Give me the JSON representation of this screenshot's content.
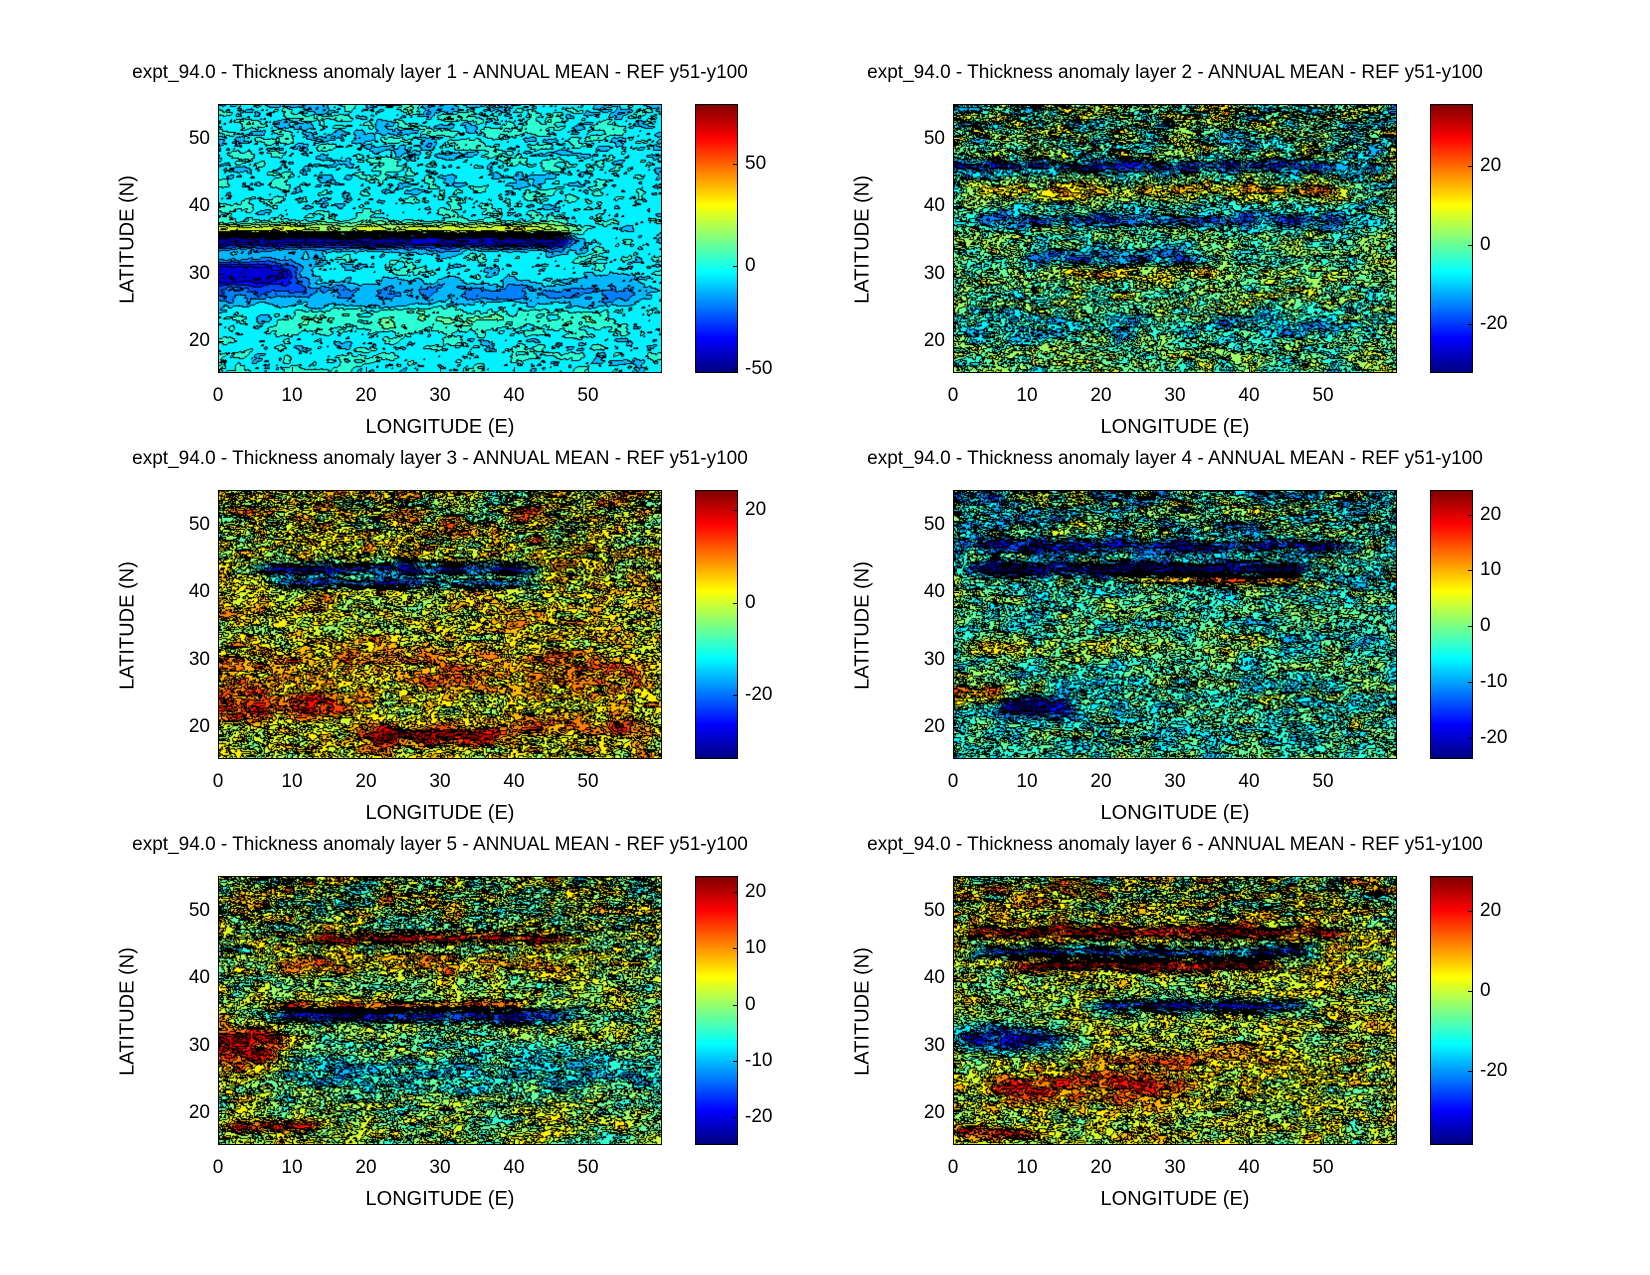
{
  "chart_data": [
    {
      "type": "heatmap",
      "title": "expt_94.0 - Thickness anomaly layer 1 - ANNUAL MEAN - REF y51-y100",
      "xlabel": "LONGITUDE (E)",
      "ylabel": "LATITUDE (N)",
      "xlim": [
        0,
        60
      ],
      "ylim": [
        15.3,
        55.2
      ],
      "xticks": [
        "0",
        "10",
        "20",
        "30",
        "40",
        "50"
      ],
      "yticks": [
        "20",
        "30",
        "40",
        "50"
      ],
      "colorbar": {
        "range": [
          -52,
          79
        ],
        "ticks": [
          "-50",
          "0",
          "50"
        ],
        "colormap": "jet"
      },
      "field": {
        "base": -4,
        "noise": 5,
        "features": [
          {
            "lon": [
              0,
              45
            ],
            "lat": 35,
            "amp": -45,
            "w": 1.2
          },
          {
            "lon": [
              0,
              45
            ],
            "lat": 36.5,
            "amp": 35,
            "w": 1
          },
          {
            "lon": [
              0,
              8
            ],
            "lat": 30,
            "amp": -40,
            "w": 2
          },
          {
            "lon": [
              0,
              55
            ],
            "lat": 27,
            "amp": -12,
            "w": 2
          },
          {
            "lon": [
              10,
              50
            ],
            "lat": 23,
            "amp": 8,
            "w": 2
          }
        ]
      }
    },
    {
      "type": "heatmap",
      "title": "expt_94.0 - Thickness anomaly layer 2 - ANNUAL MEAN - REF y51-y100",
      "xlabel": "LONGITUDE (E)",
      "ylabel": "LATITUDE (N)",
      "xlim": [
        0,
        60
      ],
      "ylim": [
        15.3,
        55.2
      ],
      "xticks": [
        "0",
        "10",
        "20",
        "30",
        "40",
        "50"
      ],
      "yticks": [
        "20",
        "30",
        "40",
        "50"
      ],
      "colorbar": {
        "range": [
          -32.4,
          35.7
        ],
        "ticks": [
          "20",
          "0",
          "-20"
        ],
        "colormap": "jet"
      },
      "field": {
        "base": 0,
        "noise": 7,
        "features": [
          {
            "lon": [
              0,
              55
            ],
            "lat": 46,
            "amp": -18,
            "w": 1
          },
          {
            "lon": [
              5,
              50
            ],
            "lat": 42.5,
            "amp": 14,
            "w": 1
          },
          {
            "lon": [
              5,
              55
            ],
            "lat": 38,
            "amp": -16,
            "w": 1.2
          },
          {
            "lon": [
              12,
              30
            ],
            "lat": 32.5,
            "amp": -16,
            "w": 1.5
          },
          {
            "lon": [
              15,
              35
            ],
            "lat": 30,
            "amp": 12,
            "w": 1
          },
          {
            "lon": [
              5,
              50
            ],
            "lat": 22,
            "amp": -8,
            "w": 2
          }
        ]
      }
    },
    {
      "type": "heatmap",
      "title": "expt_94.0 - Thickness anomaly layer 3 - ANNUAL MEAN - REF y51-y100",
      "xlabel": "LONGITUDE (E)",
      "ylabel": "LATITUDE (N)",
      "xlim": [
        0,
        60
      ],
      "ylim": [
        15.3,
        55.2
      ],
      "xticks": [
        "0",
        "10",
        "20",
        "30",
        "40",
        "50"
      ],
      "yticks": [
        "20",
        "30",
        "40",
        "50"
      ],
      "colorbar": {
        "range": [
          -33.8,
          24.4
        ],
        "ticks": [
          "20",
          "0",
          "-20"
        ],
        "colormap": "jet"
      },
      "field": {
        "base": 2,
        "noise": 6,
        "features": [
          {
            "lon": [
              8,
              40
            ],
            "lat": 43.5,
            "amp": -28,
            "w": 1
          },
          {
            "lon": [
              10,
              40
            ],
            "lat": 41.5,
            "amp": -20,
            "w": 0.8
          },
          {
            "lon": [
              0,
              55
            ],
            "lat": 28,
            "amp": 6,
            "w": 3
          },
          {
            "lon": [
              0,
              15
            ],
            "lat": 23,
            "amp": 12,
            "w": 2
          },
          {
            "lon": [
              22,
              35
            ],
            "lat": 18.5,
            "amp": 16,
            "w": 1.5
          },
          {
            "lon": [
              40,
              55
            ],
            "lat": 20,
            "amp": 10,
            "w": 1
          }
        ]
      }
    },
    {
      "type": "heatmap",
      "title": "expt_94.0 - Thickness anomaly layer 4 - ANNUAL MEAN - REF y51-y100",
      "xlabel": "LONGITUDE (E)",
      "ylabel": "LATITUDE (N)",
      "xlim": [
        0,
        60
      ],
      "ylim": [
        15.3,
        55.2
      ],
      "xticks": [
        "0",
        "10",
        "20",
        "30",
        "40",
        "50"
      ],
      "yticks": [
        "20",
        "30",
        "40",
        "50"
      ],
      "colorbar": {
        "range": [
          -23.8,
          24.4
        ],
        "ticks": [
          "20",
          "10",
          "0",
          "-10",
          "-20"
        ],
        "colormap": "jet"
      },
      "field": {
        "base": -3,
        "noise": 5,
        "features": [
          {
            "lon": [
              5,
              50
            ],
            "lat": 47,
            "amp": -14,
            "w": 1
          },
          {
            "lon": [
              5,
              45
            ],
            "lat": 43.5,
            "amp": -20,
            "w": 1
          },
          {
            "lon": [
              30,
              45
            ],
            "lat": 42,
            "amp": 20,
            "w": 0.8
          },
          {
            "lon": [
              5,
              40
            ],
            "lat": 32,
            "amp": 6,
            "w": 1.5
          },
          {
            "lon": [
              8,
              14
            ],
            "lat": 23,
            "amp": -18,
            "w": 1.5
          },
          {
            "lon": [
              0,
              5
            ],
            "lat": 25,
            "amp": 14,
            "w": 2
          }
        ]
      }
    },
    {
      "type": "heatmap",
      "title": "expt_94.0 - Thickness anomaly layer 5 - ANNUAL MEAN - REF y51-y100",
      "xlabel": "LONGITUDE (E)",
      "ylabel": "LATITUDE (N)",
      "xlim": [
        0,
        60
      ],
      "ylim": [
        15.3,
        55.2
      ],
      "xticks": [
        "0",
        "10",
        "20",
        "30",
        "40",
        "50"
      ],
      "yticks": [
        "20",
        "30",
        "40",
        "50"
      ],
      "colorbar": {
        "range": [
          -24.9,
          22.8
        ],
        "ticks": [
          "20",
          "10",
          "0",
          "-10",
          "-20"
        ],
        "colormap": "jet"
      },
      "field": {
        "base": 1,
        "noise": 5,
        "features": [
          {
            "lon": [
              15,
              45
            ],
            "lat": 46,
            "amp": 15,
            "w": 0.8
          },
          {
            "lon": [
              10,
              45
            ],
            "lat": 42,
            "amp": 8,
            "w": 1.5
          },
          {
            "lon": [
              10,
              45
            ],
            "lat": 34.5,
            "amp": -20,
            "w": 1
          },
          {
            "lon": [
              10,
              40
            ],
            "lat": 36,
            "amp": 14,
            "w": 0.8
          },
          {
            "lon": [
              0,
              6
            ],
            "lat": 30,
            "amp": 18,
            "w": 3
          },
          {
            "lon": [
              10,
              60
            ],
            "lat": 26,
            "amp": -8,
            "w": 4
          },
          {
            "lon": [
              3,
              12
            ],
            "lat": 18,
            "amp": 12,
            "w": 1
          }
        ]
      }
    },
    {
      "type": "heatmap",
      "title": "expt_94.0 - Thickness anomaly layer 6 - ANNUAL MEAN - REF y51-y100",
      "xlabel": "LONGITUDE (E)",
      "ylabel": "LATITUDE (N)",
      "xlim": [
        0,
        60
      ],
      "ylim": [
        15.3,
        55.2
      ],
      "xticks": [
        "0",
        "10",
        "20",
        "30",
        "40",
        "50"
      ],
      "yticks": [
        "20",
        "30",
        "40",
        "50"
      ],
      "colorbar": {
        "range": [
          -38.4,
          28.7
        ],
        "ticks": [
          "20",
          "0",
          "-20"
        ],
        "colormap": "jet"
      },
      "field": {
        "base": 0,
        "noise": 7,
        "features": [
          {
            "lon": [
              5,
              50
            ],
            "lat": 47,
            "amp": 22,
            "w": 0.9
          },
          {
            "lon": [
              5,
              45
            ],
            "lat": 44,
            "amp": -24,
            "w": 0.8
          },
          {
            "lon": [
              10,
              40
            ],
            "lat": 42,
            "amp": 24,
            "w": 0.8
          },
          {
            "lon": [
              20,
              45
            ],
            "lat": 36,
            "amp": -25,
            "w": 0.9
          },
          {
            "lon": [
              3,
              12
            ],
            "lat": 31,
            "amp": -28,
            "w": 2
          },
          {
            "lon": [
              8,
              30
            ],
            "lat": 24,
            "amp": 16,
            "w": 2.5
          },
          {
            "lon": [
              20,
              40
            ],
            "lat": 28,
            "amp": 10,
            "w": 1.5
          },
          {
            "lon": [
              0,
              8
            ],
            "lat": 17,
            "amp": 18,
            "w": 1
          }
        ]
      }
    }
  ]
}
